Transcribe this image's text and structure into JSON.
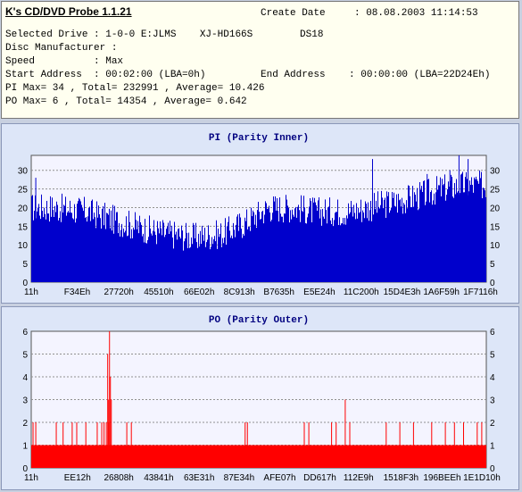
{
  "header": {
    "title": "K's CD/DVD Probe 1.1.21",
    "create_date_label": "Create Date",
    "create_date_value": ": 08.08.2003 11:14:53",
    "selected_drive": "Selected Drive : 1-0-0 E:JLMS    XJ-HD166S        DS18",
    "disc_manufacturer": "Disc Manufacturer :",
    "speed": "Speed          : Max",
    "start_address": "Start Address  : 00:02:00 (LBA=0h)",
    "end_address": "End Address    : 00:00:00 (LBA=22D24Eh)",
    "pi_summary": "PI Max= 34 , Total= 232991 , Average= 10.426",
    "po_summary": "PO Max= 6 , Total= 14354 , Average= 0.642"
  },
  "colors": {
    "pi": "#0000cc",
    "po": "#ff0000",
    "title": "#000080",
    "grid": "#909090",
    "plot_bg": "#f4f4ff"
  },
  "chart_data": [
    {
      "type": "bar",
      "title": "PI (Parity Inner)",
      "ylim": [
        0,
        34
      ],
      "yticks": [
        0,
        5,
        10,
        15,
        20,
        25,
        30
      ],
      "grid": true,
      "xticks": [
        "11h",
        "F34Eh",
        "27720h",
        "45510h",
        "66E02h",
        "8C913h",
        "B7635h",
        "E5E24h",
        "11C200h",
        "15D4E3h",
        "1A6F59h",
        "1F7116h"
      ],
      "x_range": [
        0,
        1
      ],
      "control_points": [
        [
          0,
          20
        ],
        [
          0.05,
          20
        ],
        [
          0.12,
          19
        ],
        [
          0.2,
          16
        ],
        [
          0.26,
          14
        ],
        [
          0.3,
          13
        ],
        [
          0.36,
          12
        ],
        [
          0.42,
          13
        ],
        [
          0.47,
          16
        ],
        [
          0.52,
          20
        ],
        [
          0.58,
          20
        ],
        [
          0.62,
          19
        ],
        [
          0.7,
          19
        ],
        [
          0.78,
          21
        ],
        [
          0.85,
          23
        ],
        [
          0.9,
          25
        ],
        [
          0.95,
          26
        ],
        [
          1.0,
          26
        ]
      ],
      "spikes": [
        [
          0.01,
          28
        ],
        [
          0.75,
          33
        ],
        [
          0.87,
          29
        ],
        [
          0.94,
          34
        ],
        [
          0.96,
          33
        ],
        [
          0.92,
          30
        ]
      ]
    },
    {
      "type": "bar",
      "title": "PO (Parity Outer)",
      "ylim": [
        0,
        6
      ],
      "yticks": [
        0,
        1,
        2,
        3,
        4,
        5,
        6
      ],
      "grid": true,
      "xticks": [
        "11h",
        "EE12h",
        "26808h",
        "43841h",
        "63E31h",
        "87E34h",
        "AFE07h",
        "DD617h",
        "112E9h",
        "1518F3h",
        "196BEEh",
        "1E1D10h"
      ],
      "x_range": [
        0,
        1
      ],
      "baseline": 1,
      "spikes": [
        [
          0.004,
          2
        ],
        [
          0.01,
          2
        ],
        [
          0.055,
          2
        ],
        [
          0.07,
          2
        ],
        [
          0.09,
          2
        ],
        [
          0.1,
          2
        ],
        [
          0.12,
          2
        ],
        [
          0.145,
          2
        ],
        [
          0.16,
          2
        ],
        [
          0.17,
          2
        ],
        [
          0.155,
          2
        ],
        [
          0.165,
          2
        ],
        [
          0.17,
          3
        ],
        [
          0.168,
          5
        ],
        [
          0.172,
          6
        ],
        [
          0.174,
          4
        ],
        [
          0.176,
          3
        ],
        [
          0.21,
          2
        ],
        [
          0.22,
          2
        ],
        [
          0.47,
          2
        ],
        [
          0.475,
          2
        ],
        [
          0.6,
          2
        ],
        [
          0.61,
          2
        ],
        [
          0.66,
          2
        ],
        [
          0.67,
          2
        ],
        [
          0.69,
          3
        ],
        [
          0.7,
          2
        ],
        [
          0.78,
          2
        ],
        [
          0.81,
          2
        ],
        [
          0.84,
          2
        ],
        [
          0.88,
          2
        ],
        [
          0.91,
          2
        ],
        [
          0.93,
          2
        ],
        [
          0.95,
          2
        ],
        [
          0.98,
          2
        ],
        [
          0.99,
          2
        ]
      ]
    }
  ]
}
